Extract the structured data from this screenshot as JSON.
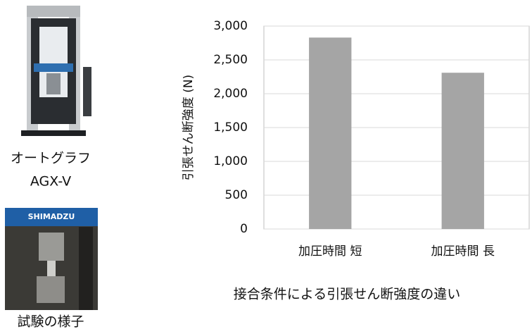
{
  "photos": [
    {
      "label_lines": [
        "オートグラフ",
        "AGX-V"
      ]
    },
    {
      "brand": "SHIMADZU",
      "label_lines": [
        "試験の様子"
      ]
    }
  ],
  "chart_data": {
    "type": "bar",
    "y_label": "引張せん断強度 (N)",
    "caption": "接合条件による引張せん断強度の違い",
    "categories": [
      "加圧時間 短",
      "加圧時間 長"
    ],
    "values": [
      2830,
      2310
    ],
    "color": "#a5a5a5",
    "ylim": [
      0,
      3000
    ],
    "yticks": [
      0,
      500,
      {
        "value": 1000,
        "label": "1,000"
      },
      {
        "value": 1500,
        "label": "1,500"
      },
      {
        "value": 2000,
        "label": "2,000"
      },
      {
        "value": 2500,
        "label": "2,500"
      },
      {
        "value": 3000,
        "label": "3,000"
      }
    ],
    "grid": true
  }
}
